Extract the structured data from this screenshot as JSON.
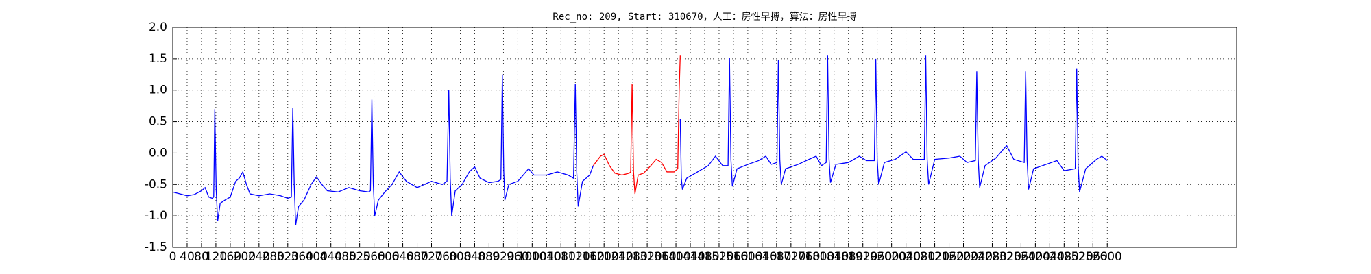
{
  "chart_data": {
    "type": "line",
    "title": "Rec_no: 209, Start: 310670，人工：房性早搏，算法：房性早搏",
    "xlim": [
      0,
      2960
    ],
    "ylim": [
      -1.5,
      2.0
    ],
    "yticks": [
      {
        "value": -1.5,
        "label": "-1.5"
      },
      {
        "value": -1,
        "label": "-1.0"
      },
      {
        "value": -0.5,
        "label": "-0.5"
      },
      {
        "value": 0,
        "label": "0.0"
      },
      {
        "value": 0.5,
        "label": "0.5"
      },
      {
        "value": 1,
        "label": "1.0"
      },
      {
        "value": 1.5,
        "label": "1.5"
      },
      {
        "value": 2,
        "label": "2.0"
      }
    ],
    "xticks": [
      0,
      40,
      80,
      120,
      160,
      200,
      240,
      280,
      320,
      360,
      400,
      440,
      480,
      520,
      560,
      600,
      640,
      680,
      720,
      760,
      800,
      840,
      880,
      920,
      960,
      1000,
      1040,
      1080,
      1120,
      1160,
      1200,
      1240,
      1280,
      1320,
      1360,
      1400,
      1440,
      1480,
      1520,
      1560,
      1600,
      1640,
      1680,
      1720,
      1760,
      1800,
      1840,
      1880,
      1920,
      1960,
      2000,
      2040,
      2080,
      2120,
      2160,
      2200,
      2240,
      2280,
      2320,
      2360,
      2400,
      2440,
      2480,
      2520,
      2560,
      2600
    ],
    "grid": true,
    "series": [
      {
        "color": "#0000ff",
        "x": [
          0,
          20,
          40,
          60,
          80,
          90,
          100,
          110,
          114,
          117,
          121,
          125,
          132,
          145,
          160,
          175,
          185,
          195,
          205,
          215,
          240,
          270,
          300,
          320,
          330,
          334,
          338,
          342,
          350,
          365,
          385,
          400,
          415,
          430,
          460,
          490,
          520,
          545,
          550,
          554,
          558,
          562,
          572,
          590,
          610,
          630,
          650,
          680,
          720,
          750,
          763,
          768,
          772,
          776,
          786,
          805,
          825,
          840,
          855,
          880,
          905,
          913,
          917,
          921,
          924,
          935,
          960,
          990,
          1005,
          1040,
          1070,
          1100,
          1115,
          1120,
          1124,
          1128,
          1140,
          1160,
          1170
        ],
        "values": [
          -0.62,
          -0.65,
          -0.68,
          -0.66,
          -0.6,
          -0.55,
          -0.7,
          -0.72,
          -0.7,
          0.7,
          -0.6,
          -1.08,
          -0.8,
          -0.75,
          -0.7,
          -0.45,
          -0.4,
          -0.3,
          -0.5,
          -0.65,
          -0.68,
          -0.65,
          -0.68,
          -0.72,
          -0.7,
          0.72,
          -0.5,
          -1.15,
          -0.85,
          -0.75,
          -0.5,
          -0.38,
          -0.5,
          -0.6,
          -0.62,
          -0.55,
          -0.6,
          -0.62,
          -0.6,
          0.85,
          -0.5,
          -1.0,
          -0.75,
          -0.62,
          -0.5,
          -0.3,
          -0.45,
          -0.55,
          -0.45,
          -0.5,
          -0.45,
          1.0,
          -0.4,
          -1.0,
          -0.6,
          -0.5,
          -0.3,
          -0.22,
          -0.4,
          -0.47,
          -0.45,
          -0.42,
          1.25,
          -0.3,
          -0.75,
          -0.5,
          -0.45,
          -0.25,
          -0.35,
          -0.35,
          -0.3,
          -0.35,
          -0.4,
          1.1,
          -0.3,
          -0.85,
          -0.45,
          -0.35,
          -0.2
        ]
      },
      {
        "color": "#ff0000",
        "x": [
          1170,
          1190,
          1200,
          1215,
          1230,
          1250,
          1270,
          1274,
          1278,
          1282,
          1286,
          1295,
          1310,
          1330,
          1345,
          1360,
          1375,
          1395,
          1405,
          1409,
          1412
        ],
        "values": [
          -0.2,
          -0.05,
          -0.02,
          -0.2,
          -0.32,
          -0.35,
          -0.32,
          -0.3,
          1.1,
          -0.3,
          -0.65,
          -0.35,
          -0.32,
          -0.2,
          -0.1,
          -0.15,
          -0.3,
          -0.3,
          -0.25,
          1.0,
          1.55
        ]
      },
      {
        "color": "#0000ff",
        "x": [
          1412,
          1415,
          1418,
          1430,
          1460,
          1490,
          1510,
          1530,
          1545,
          1549,
          1553,
          1557,
          1570,
          1600,
          1630,
          1650,
          1665,
          1681,
          1685,
          1689,
          1693,
          1705,
          1740,
          1770,
          1790,
          1805,
          1818,
          1822,
          1826,
          1830,
          1845,
          1880,
          1910,
          1930,
          1952,
          1956,
          1960,
          1964,
          1980,
          2010,
          2040,
          2060,
          2091,
          2095,
          2099,
          2103,
          2120,
          2160,
          2190,
          2210,
          2233,
          2237,
          2241,
          2245,
          2260,
          2290,
          2320,
          2340,
          2369,
          2373,
          2377,
          2381,
          2395,
          2430,
          2460,
          2480,
          2511,
          2515,
          2519,
          2523,
          2540,
          2570,
          2585,
          2600
        ],
        "values": [
          0.55,
          -0.4,
          -0.58,
          -0.4,
          -0.3,
          -0.2,
          -0.05,
          -0.2,
          -0.2,
          1.52,
          -0.1,
          -0.53,
          -0.25,
          -0.18,
          -0.12,
          -0.05,
          -0.18,
          -0.15,
          1.48,
          -0.1,
          -0.5,
          -0.25,
          -0.18,
          -0.1,
          -0.05,
          -0.2,
          -0.15,
          1.55,
          -0.1,
          -0.47,
          -0.18,
          -0.15,
          -0.05,
          -0.12,
          -0.12,
          1.5,
          -0.1,
          -0.5,
          -0.15,
          -0.1,
          0.02,
          -0.1,
          -0.1,
          1.55,
          -0.1,
          -0.5,
          -0.1,
          -0.08,
          -0.05,
          -0.15,
          -0.12,
          1.3,
          -0.1,
          -0.55,
          -0.2,
          -0.08,
          0.12,
          -0.1,
          -0.15,
          1.3,
          -0.1,
          -0.58,
          -0.25,
          -0.18,
          -0.12,
          -0.28,
          -0.25,
          1.35,
          -0.2,
          -0.62,
          -0.25,
          -0.1,
          -0.05,
          -0.12
        ]
      }
    ]
  }
}
